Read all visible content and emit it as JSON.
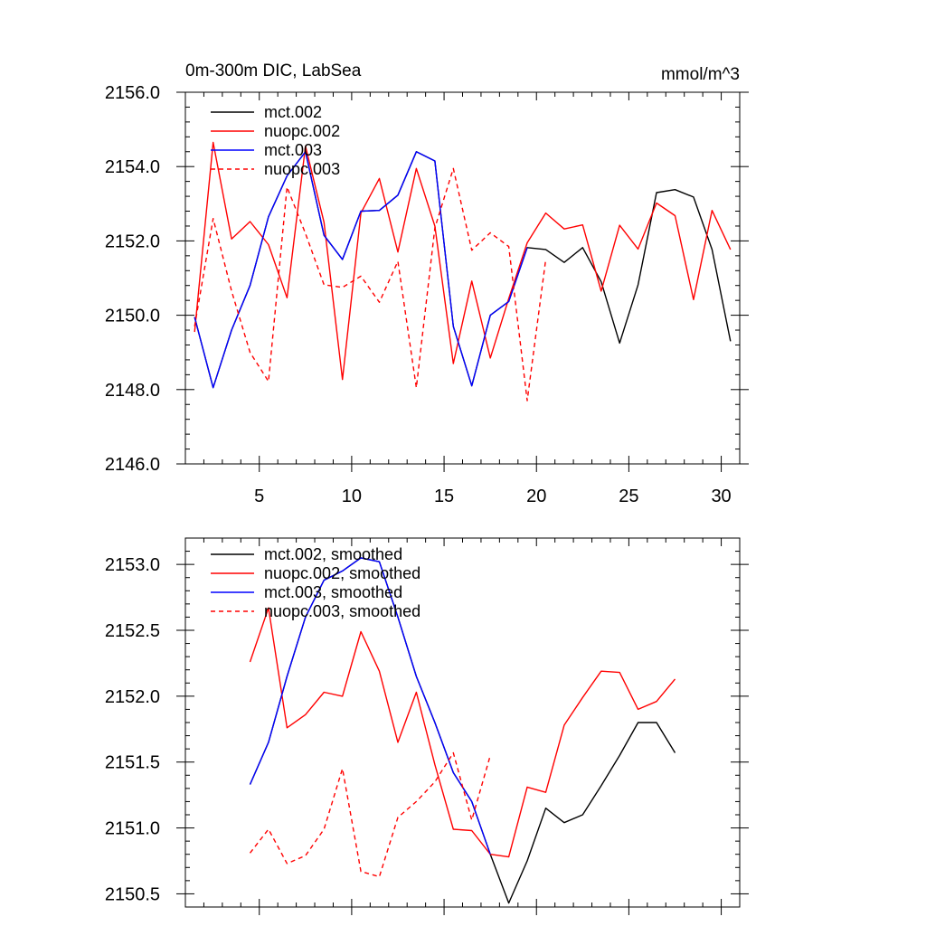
{
  "chart_data": [
    {
      "type": "line",
      "title": "0m-300m DIC, LabSea",
      "units": "mmol/m^3",
      "xlim": [
        1,
        31
      ],
      "ylim": [
        2146.0,
        2156.0
      ],
      "xticks": [
        5,
        10,
        15,
        20,
        25,
        30
      ],
      "xtick_labels": [
        "5",
        "10",
        "15",
        "20",
        "25",
        "30"
      ],
      "yticks": [
        2146.0,
        2148.0,
        2150.0,
        2152.0,
        2154.0,
        2156.0
      ],
      "ytick_labels": [
        "2146.0",
        "2148.0",
        "2150.0",
        "2152.0",
        "2154.0",
        "2156.0"
      ],
      "legend_position": "top-left",
      "series": [
        {
          "name": "mct.002",
          "color": "#000000",
          "dashed": false,
          "x": [
            1.5,
            2.5,
            3.5,
            4.5,
            5.5,
            6.5,
            7.5,
            8.5,
            9.5,
            10.5,
            11.5,
            12.5,
            13.5,
            14.5,
            15.5,
            16.5,
            17.5,
            18.5,
            19.5,
            20.5,
            21.5,
            22.5,
            23.5,
            24.5,
            25.5,
            26.5,
            27.5,
            28.5,
            29.5,
            30.5
          ],
          "values": [
            2149.95,
            2148.05,
            2149.6,
            2150.8,
            2152.65,
            2153.75,
            2154.4,
            2152.15,
            2151.5,
            2152.8,
            2152.82,
            2153.23,
            2154.4,
            2154.15,
            2149.7,
            2148.1,
            2150.0,
            2150.37,
            2151.82,
            2151.77,
            2151.42,
            2151.82,
            2150.9,
            2149.25,
            2150.82,
            2153.3,
            2153.38,
            2153.18,
            2151.77,
            2149.3
          ]
        },
        {
          "name": "nuopc.002",
          "color": "#ff0000",
          "dashed": false,
          "x": [
            1.5,
            2.5,
            3.5,
            4.5,
            5.5,
            6.5,
            7.5,
            8.5,
            9.5,
            10.5,
            11.5,
            12.5,
            13.5,
            14.5,
            15.5,
            16.5,
            17.5,
            18.5,
            19.5,
            20.5,
            21.5,
            22.5,
            23.5,
            24.5,
            25.5,
            26.5,
            27.5,
            28.5,
            29.5,
            30.5
          ],
          "values": [
            2149.55,
            2154.65,
            2152.05,
            2152.52,
            2151.9,
            2150.47,
            2154.55,
            2152.5,
            2148.27,
            2152.75,
            2153.68,
            2151.7,
            2153.95,
            2152.4,
            2148.7,
            2150.92,
            2148.85,
            2150.45,
            2151.95,
            2152.75,
            2152.32,
            2152.43,
            2150.65,
            2152.42,
            2151.78,
            2153.02,
            2152.68,
            2150.42,
            2152.82,
            2151.77
          ]
        },
        {
          "name": "mct.003",
          "color": "#0000ff",
          "dashed": false,
          "x": [
            1.5,
            2.5,
            3.5,
            4.5,
            5.5,
            6.5,
            7.5,
            8.5,
            9.5,
            10.5,
            11.5,
            12.5,
            13.5,
            14.5,
            15.5,
            16.5,
            17.5,
            18.5,
            19.5
          ],
          "values": [
            2149.95,
            2148.05,
            2149.6,
            2150.8,
            2152.65,
            2153.75,
            2154.4,
            2152.15,
            2151.5,
            2152.8,
            2152.82,
            2153.23,
            2154.4,
            2154.15,
            2149.7,
            2148.1,
            2150.0,
            2150.37,
            2151.82
          ]
        },
        {
          "name": "nuopc.003",
          "color": "#ff0000",
          "dashed": true,
          "x": [
            1.5,
            2.5,
            3.5,
            4.5,
            5.5,
            6.5,
            7.5,
            8.5,
            9.5,
            10.5,
            11.5,
            12.5,
            13.5,
            14.5,
            15.5,
            16.5,
            17.5,
            18.5,
            19.5,
            20.5
          ],
          "values": [
            2149.7,
            2152.6,
            2150.65,
            2149.0,
            2148.22,
            2153.45,
            2152.2,
            2150.82,
            2150.75,
            2151.05,
            2150.35,
            2151.45,
            2148.05,
            2152.35,
            2153.95,
            2151.75,
            2152.22,
            2151.85,
            2147.7,
            2151.5
          ]
        }
      ]
    },
    {
      "type": "line",
      "xlim": [
        1,
        31
      ],
      "ylim": [
        2150.4,
        2153.2
      ],
      "xticks": [
        5,
        10,
        15,
        20,
        25,
        30
      ],
      "xtick_labels": [],
      "yticks": [
        2150.5,
        2151.0,
        2151.5,
        2152.0,
        2152.5,
        2153.0
      ],
      "ytick_labels": [
        "2150.5",
        "2151.0",
        "2151.5",
        "2152.0",
        "2152.5",
        "2153.0"
      ],
      "legend_position": "top-left",
      "series": [
        {
          "name": "mct.002, smoothed",
          "color": "#000000",
          "dashed": false,
          "x": [
            4.5,
            5.5,
            6.5,
            7.5,
            8.5,
            9.5,
            10.5,
            11.5,
            12.5,
            13.5,
            14.5,
            15.5,
            16.5,
            17.5,
            18.5,
            19.5,
            20.5,
            21.5,
            22.5,
            23.5,
            24.5,
            25.5,
            26.5,
            27.5
          ],
          "values": [
            2151.33,
            2151.65,
            2152.15,
            2152.6,
            2152.88,
            2152.95,
            2153.05,
            2153.02,
            2152.6,
            2152.15,
            2151.8,
            2151.42,
            2151.2,
            2150.8,
            2150.43,
            2150.75,
            2151.15,
            2151.04,
            2151.1,
            2151.32,
            2151.55,
            2151.8,
            2151.8,
            2151.57
          ]
        },
        {
          "name": "nuopc.002, smoothed",
          "color": "#ff0000",
          "dashed": false,
          "x": [
            4.5,
            5.5,
            6.5,
            7.5,
            8.5,
            9.5,
            10.5,
            11.5,
            12.5,
            13.5,
            14.5,
            15.5,
            16.5,
            17.5,
            18.5,
            19.5,
            20.5,
            21.5,
            22.5,
            23.5,
            24.5,
            25.5,
            26.5,
            27.5
          ],
          "values": [
            2152.26,
            2152.67,
            2151.76,
            2151.86,
            2152.03,
            2152.0,
            2152.49,
            2152.19,
            2151.65,
            2152.03,
            2151.48,
            2150.99,
            2150.98,
            2150.8,
            2150.78,
            2151.31,
            2151.27,
            2151.78,
            2151.99,
            2152.19,
            2152.18,
            2151.9,
            2151.96,
            2152.13
          ]
        },
        {
          "name": "mct.003, smoothed",
          "color": "#0000ff",
          "dashed": false,
          "x": [
            4.5,
            5.5,
            6.5,
            7.5,
            8.5,
            9.5,
            10.5,
            11.5,
            12.5,
            13.5,
            14.5,
            15.5,
            16.5,
            17.5
          ],
          "values": [
            2151.33,
            2151.65,
            2152.15,
            2152.6,
            2152.88,
            2152.95,
            2153.05,
            2153.02,
            2152.6,
            2152.15,
            2151.8,
            2151.42,
            2151.2,
            2150.8
          ]
        },
        {
          "name": "nuopc.003, smoothed",
          "color": "#ff0000",
          "dashed": true,
          "x": [
            4.5,
            5.5,
            6.5,
            7.5,
            8.5,
            9.5,
            10.5,
            11.5,
            12.5,
            13.5,
            14.5,
            15.5,
            16.5,
            17.5
          ],
          "values": [
            2150.81,
            2150.99,
            2150.73,
            2150.79,
            2150.99,
            2151.45,
            2150.67,
            2150.63,
            2151.08,
            2151.2,
            2151.35,
            2151.57,
            2151.06,
            2151.55
          ]
        }
      ]
    }
  ]
}
